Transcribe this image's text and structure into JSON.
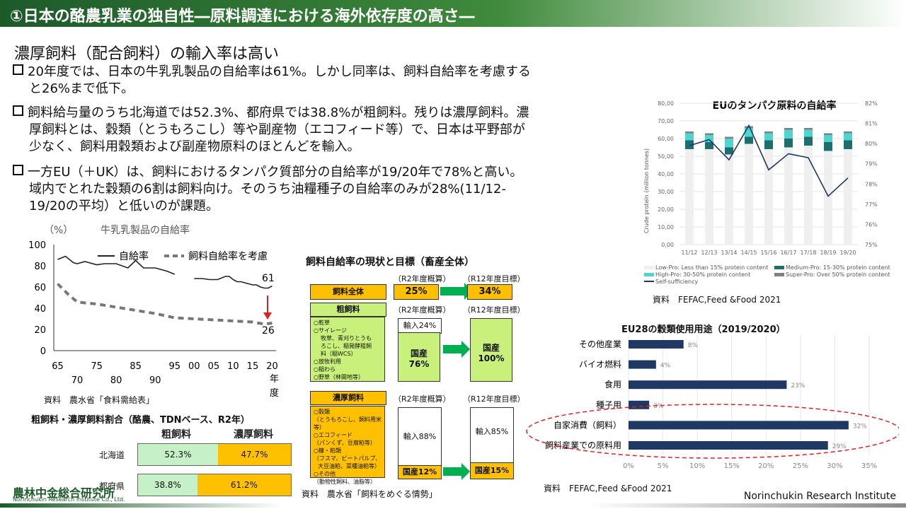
{
  "title": "①日本の酪農乳業の独自性―原料調達における海外依存度の高さ―",
  "heading": "濃厚飼料（配合飼料）の輸入率は高い",
  "bullets": [
    {
      "lines": [
        "20年度では、日本の牛乳乳製品の自給率は61%。しかし同率は、飼料自給率を考慮する",
        "と26%まで低下。"
      ]
    },
    {
      "lines": [
        "飼料給与量のうち北海道では52.3%、都府県では38.8%が粗飼料。残りは濃厚飼料。濃",
        "厚飼料とは、穀類（とうもろこし）等や副産物（エコフィード等）で、日本は平野部が",
        "少なく、飼料用穀類および副産物原料のほとんどを輸入。"
      ]
    },
    {
      "lines": [
        "一方EU（＋UK）は、飼料におけるタンパク質部分の自給率が19/20年で78%と高い。",
        "域内でとれた穀類の6割は飼料向け。そのうち油糧種子の自給率のみが28%(11/12-",
        "19/20の平均）と低いのが課題。"
      ]
    }
  ],
  "self_sufficiency_chart": {
    "unit": "（%）",
    "title": "牛乳乳製品の自給率",
    "legend": [
      "自給率",
      "飼料自給率を考慮"
    ],
    "y_ticks": [
      "100",
      "80",
      "60",
      "40",
      "20",
      "0"
    ],
    "x_ticks_top": [
      "65",
      "75",
      "85",
      "95",
      "00",
      "05",
      "10",
      "15",
      "20"
    ],
    "x_ticks_bottom": [
      "70",
      "80",
      "90"
    ],
    "x_suffix": [
      "年",
      "度"
    ],
    "end_value_top": "61",
    "end_value_bottom": "26",
    "source": "資料　農水省「食料需給表」"
  },
  "chart_data": [
    {
      "type": "line",
      "title": "牛乳乳製品の自給率",
      "ylabel": "（%）",
      "ylim": [
        0,
        100
      ],
      "series": [
        {
          "name": "自給率",
          "x": [
            1965,
            1967,
            1969,
            1970,
            1972,
            1975,
            1977,
            1980,
            1983,
            1985,
            1987,
            1990,
            1993,
            1995
          ],
          "values": [
            86,
            89,
            83,
            82,
            84,
            81,
            82,
            82,
            78,
            85,
            78,
            78,
            75,
            72
          ]
        },
        {
          "name": "自給率",
          "x": [
            2000,
            2002,
            2004,
            2006,
            2008,
            2009,
            2010,
            2011,
            2012,
            2013,
            2014,
            2015,
            2016,
            2017,
            2018,
            2019,
            2020
          ],
          "values": [
            68,
            68,
            67,
            67,
            70,
            70,
            67,
            65,
            65,
            64,
            63,
            62,
            62,
            60,
            59,
            59,
            61
          ]
        },
        {
          "name": "飼料自給率を考慮",
          "x": [
            1965,
            1968,
            1970,
            1972,
            1975,
            1980,
            1985,
            1990,
            1995,
            2000,
            2005,
            2010,
            2015,
            2018,
            2020
          ],
          "values": [
            63,
            52,
            46,
            45,
            44,
            41,
            38,
            35,
            31,
            30,
            29,
            28,
            27,
            25,
            26
          ]
        }
      ]
    },
    {
      "type": "bar",
      "title": "EUのタンパク原料の自給率",
      "ylabel": "Crude protein (million tonnes)",
      "categories": [
        "11/12",
        "12/13",
        "13/14",
        "14/15",
        "15/16",
        "16/17",
        "17/18",
        "18/19",
        "19/20"
      ],
      "ylim": [
        0,
        80
      ],
      "y2lim": [
        75,
        82
      ],
      "series": [
        {
          "name": "Low-Pro: Less than 15% protein content",
          "values": [
            54,
            54,
            51,
            57,
            54,
            55,
            56,
            53,
            54
          ]
        },
        {
          "name": "Medium-Pro: 15-30% protein content",
          "values": [
            5,
            4,
            4,
            4,
            5,
            5,
            5,
            5,
            5
          ]
        },
        {
          "name": "High-Pro: 30-50% protein content",
          "values": [
            4,
            4,
            5,
            5,
            4,
            5,
            4,
            4,
            4
          ]
        },
        {
          "name": "Super-Pro: Over 50% protein content",
          "values": [
            1,
            1,
            1,
            1,
            1,
            1,
            1,
            1,
            1
          ]
        },
        {
          "name": "Self-sufficiency",
          "axis": "right",
          "values": [
            79.9,
            80.2,
            79.2,
            80.9,
            78.7,
            79.5,
            79.3,
            77.4,
            78.3
          ]
        }
      ]
    },
    {
      "type": "bar",
      "title": "EU28の穀類使用用途（2019/2020）",
      "categories": [
        "その他産業",
        "バイオ燃料",
        "食用",
        "種子用",
        "自家消費（飼料）",
        "飼料産業での原料用"
      ],
      "values": [
        8,
        4,
        23,
        3,
        32,
        29
      ],
      "unit": "%",
      "xlim": [
        0,
        35
      ]
    }
  ],
  "feed_chart": {
    "title": "飼料自給率の現状と目標（畜産全体）",
    "col1": "（R2年度概算）",
    "col2": "（R12年度目標）",
    "rows": [
      {
        "label": "飼料全体",
        "now": "25%",
        "goal": "34%"
      },
      {
        "label": "粗飼料",
        "imp": "輸入24%",
        "dom_label": "国産",
        "now": "76%",
        "goal_label": "国産",
        "goal": "100%",
        "items": [
          "○乾草",
          "○サイレージ",
          "牧草、青刈りとうも",
          "ろこし、稲発酵粗飼",
          "料（稲WCS）",
          "○放牧利用",
          "○稲わら",
          "○野草（林間地等）"
        ]
      },
      {
        "label": "濃厚飼料",
        "imp_now": "輸入88%",
        "imp_goal": "輸入85%",
        "dom_now": "国産12%",
        "dom_goal": "国産15%",
        "items": [
          "○穀類",
          "（とうもろこし、飼料用米等）",
          "○エコフィード",
          "（パンくず、豆腐粕等）",
          "○糠・粕類",
          "（フスマ、ビートパルプ、",
          "大豆油粕、菜種油粕等）",
          "○その他",
          "（動物性飼料、油脂等）"
        ]
      }
    ],
    "source": "資料　農水省「飼料をめぐる情勢」"
  },
  "roughage_table": {
    "title": "粗飼料・濃厚飼料割合（酪農、TDNベース、R2年）",
    "headers": [
      "粗飼料",
      "濃厚飼料"
    ],
    "rows": [
      {
        "region": "北海道",
        "rough": "52.3%",
        "rough_pct": 52.3,
        "conc": "47.7%"
      },
      {
        "region": "都府県",
        "rough": "38.8%",
        "rough_pct": 38.8,
        "conc": "61.2%"
      }
    ]
  },
  "eu_protein_chart": {
    "title": "EUのタンパク原料の自給率",
    "ylabel": "Crude protein (million tonnes)",
    "y_ticks": [
      "80,00",
      "70,00",
      "60,00",
      "50,00",
      "40,00",
      "30,00",
      "20,00",
      "10,00",
      "0,00"
    ],
    "y2_ticks": [
      "82%",
      "81%",
      "80%",
      "79%",
      "78%",
      "77%",
      "76%",
      "75%"
    ],
    "legend": [
      "Low-Pro: Less than 15% protein content",
      "Medium-Pro: 15-30% protein content",
      "High-Pro: 30-50% protein content",
      "Super-Pro: Over 50% protein content",
      "Self-sufficiency"
    ],
    "source": "資料　FEFAC,Feed &Food 2021"
  },
  "eu_grain_chart": {
    "title": "EU28の穀類使用用途（2019/2020）",
    "x_ticks": [
      "0%",
      "5%",
      "10%",
      "15%",
      "20%",
      "25%",
      "30%",
      "35%"
    ],
    "source": "資料　FEFAC,Feed &Food 2021"
  },
  "footer": {
    "logo": "農林中金総合研究所",
    "logo_sub": "Norinchukin Research Institute Co., Ltd.",
    "right": "Norinchukin Research Institute"
  },
  "colors": {
    "title_green": "#1d5a2a",
    "lime": "#c8f07a",
    "yellow": "#ffc000",
    "navy": "#1f3864",
    "teal_dark": "#1f6e6e",
    "teal_light": "#4fd5d0"
  }
}
